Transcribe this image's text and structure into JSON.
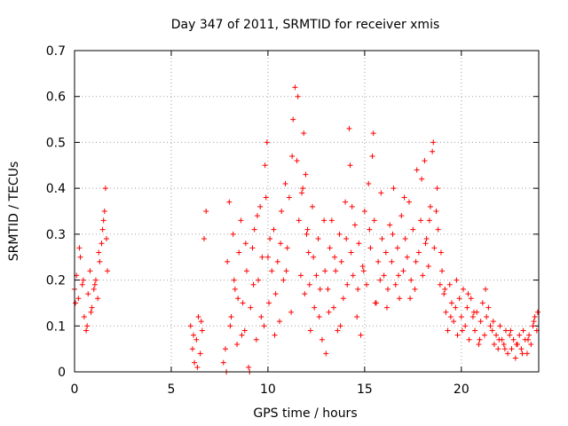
{
  "chart_data": {
    "type": "scatter",
    "title": "Day 347 of 2011, SRMTID for receiver xmis",
    "xlabel": "GPS time / hours",
    "ylabel": "SRMTID / TECUs",
    "xlim": [
      0,
      24
    ],
    "ylim": [
      0,
      0.7
    ],
    "xticks": [
      0,
      5,
      10,
      15,
      20
    ],
    "yticks": [
      0,
      0.1,
      0.2,
      0.3,
      0.4,
      0.5,
      0.6,
      0.7
    ],
    "xtick_labels": [
      "0",
      "5",
      "10",
      "15",
      "20"
    ],
    "ytick_labels": [
      "0",
      "0.1",
      "0.2",
      "0.3",
      "0.4",
      "0.5",
      "0.6",
      "0.7"
    ],
    "grid": true,
    "marker": "+",
    "color": "#ff0000",
    "series": [
      {
        "name": "SRMTID",
        "x": [
          0.0,
          0.1,
          0.2,
          0.3,
          0.4,
          0.5,
          0.6,
          0.7,
          0.8,
          0.9,
          1.0,
          1.1,
          1.2,
          1.3,
          1.4,
          1.5,
          1.6,
          1.7,
          0.05,
          0.25,
          0.45,
          0.65,
          0.85,
          1.05,
          1.25,
          1.45,
          1.55,
          1.65,
          6.0,
          6.1,
          6.2,
          6.3,
          6.4,
          6.5,
          6.6,
          6.7,
          6.8,
          6.15,
          6.35,
          6.55,
          7.7,
          7.8,
          7.9,
          8.0,
          8.1,
          8.2,
          8.3,
          8.4,
          8.5,
          8.6,
          8.7,
          8.8,
          8.9,
          9.0,
          9.1,
          9.2,
          9.3,
          9.4,
          9.5,
          9.6,
          9.7,
          9.8,
          9.9,
          7.85,
          8.05,
          8.25,
          8.45,
          8.65,
          8.85,
          9.05,
          9.25,
          9.45,
          9.65,
          9.85,
          9.95,
          10.0,
          10.1,
          10.2,
          10.3,
          10.4,
          10.5,
          10.6,
          10.7,
          10.8,
          10.9,
          11.0,
          11.1,
          11.2,
          11.3,
          11.4,
          11.5,
          11.6,
          11.7,
          11.8,
          11.9,
          12.0,
          12.1,
          12.2,
          12.3,
          12.4,
          12.5,
          12.6,
          12.7,
          12.8,
          12.9,
          10.05,
          10.35,
          10.65,
          10.95,
          11.25,
          11.55,
          11.75,
          11.85,
          11.95,
          12.05,
          12.15,
          12.35,
          12.65,
          12.95,
          13.0,
          13.1,
          13.2,
          13.3,
          13.4,
          13.5,
          13.6,
          13.7,
          13.8,
          13.9,
          14.0,
          14.1,
          14.2,
          14.3,
          14.4,
          14.5,
          14.6,
          14.7,
          14.8,
          14.9,
          15.0,
          15.1,
          15.2,
          15.3,
          15.4,
          15.5,
          15.6,
          15.7,
          15.8,
          15.9,
          13.15,
          13.45,
          13.75,
          14.05,
          14.25,
          14.35,
          14.65,
          14.95,
          15.25,
          15.45,
          15.55,
          15.85,
          16.0,
          16.1,
          16.2,
          16.3,
          16.4,
          16.5,
          16.6,
          16.7,
          16.8,
          16.9,
          17.0,
          17.1,
          17.2,
          17.3,
          17.4,
          17.5,
          17.6,
          17.7,
          17.8,
          17.9,
          18.0,
          18.1,
          18.2,
          18.3,
          18.4,
          18.5,
          18.6,
          18.7,
          18.8,
          18.9,
          16.15,
          16.45,
          16.75,
          17.05,
          17.35,
          17.65,
          17.95,
          18.15,
          18.35,
          18.55,
          18.75,
          18.95,
          19.0,
          19.1,
          19.2,
          19.3,
          19.4,
          19.5,
          19.6,
          19.7,
          19.8,
          19.9,
          20.0,
          20.1,
          20.2,
          20.3,
          20.4,
          20.5,
          20.6,
          20.7,
          20.8,
          20.9,
          21.0,
          21.1,
          21.2,
          21.3,
          21.4,
          21.5,
          19.15,
          19.45,
          19.75,
          20.05,
          20.35,
          20.65,
          20.95,
          21.25,
          21.6,
          21.7,
          21.8,
          21.9,
          22.0,
          22.1,
          22.2,
          22.3,
          22.4,
          22.5,
          22.6,
          22.7,
          22.8,
          22.9,
          23.0,
          23.1,
          23.2,
          23.3,
          23.4,
          23.5,
          23.6,
          23.7,
          23.8,
          23.9,
          21.65,
          21.95,
          22.25,
          22.55,
          22.85,
          23.15,
          23.45,
          23.75,
          23.95
        ],
        "y": [
          0.18,
          0.21,
          0.16,
          0.25,
          0.19,
          0.12,
          0.09,
          0.17,
          0.22,
          0.14,
          0.18,
          0.2,
          0.16,
          0.24,
          0.28,
          0.33,
          0.4,
          0.22,
          0.15,
          0.27,
          0.2,
          0.1,
          0.13,
          0.19,
          0.26,
          0.31,
          0.35,
          0.29,
          0.1,
          0.05,
          0.02,
          0.07,
          0.12,
          0.04,
          0.09,
          0.29,
          0.35,
          0.08,
          0.01,
          0.11,
          0.02,
          0.05,
          0.24,
          0.37,
          0.12,
          0.3,
          0.18,
          0.06,
          0.26,
          0.33,
          0.15,
          0.09,
          0.22,
          0.01,
          0.14,
          0.27,
          0.31,
          0.07,
          0.2,
          0.36,
          0.25,
          0.1,
          0.38,
          0.0,
          0.1,
          0.2,
          0.16,
          0.08,
          0.28,
          0.0,
          0.19,
          0.34,
          0.12,
          0.45,
          0.5,
          0.25,
          0.29,
          0.22,
          0.31,
          0.17,
          0.24,
          0.11,
          0.35,
          0.2,
          0.41,
          0.27,
          0.38,
          0.13,
          0.55,
          0.62,
          0.46,
          0.33,
          0.21,
          0.4,
          0.17,
          0.3,
          0.26,
          0.09,
          0.36,
          0.14,
          0.21,
          0.29,
          0.18,
          0.07,
          0.33,
          0.15,
          0.08,
          0.28,
          0.22,
          0.47,
          0.6,
          0.39,
          0.52,
          0.43,
          0.31,
          0.19,
          0.25,
          0.12,
          0.22,
          0.04,
          0.18,
          0.27,
          0.33,
          0.14,
          0.22,
          0.09,
          0.3,
          0.24,
          0.16,
          0.37,
          0.19,
          0.53,
          0.26,
          0.21,
          0.32,
          0.12,
          0.28,
          0.08,
          0.23,
          0.35,
          0.19,
          0.41,
          0.27,
          0.47,
          0.33,
          0.15,
          0.24,
          0.2,
          0.29,
          0.13,
          0.25,
          0.1,
          0.29,
          0.45,
          0.36,
          0.18,
          0.22,
          0.31,
          0.52,
          0.15,
          0.39,
          0.21,
          0.26,
          0.18,
          0.32,
          0.24,
          0.4,
          0.19,
          0.27,
          0.16,
          0.34,
          0.22,
          0.29,
          0.25,
          0.37,
          0.2,
          0.31,
          0.18,
          0.44,
          0.26,
          0.33,
          0.21,
          0.46,
          0.29,
          0.23,
          0.36,
          0.48,
          0.27,
          0.35,
          0.31,
          0.19,
          0.14,
          0.3,
          0.21,
          0.38,
          0.16,
          0.24,
          0.42,
          0.28,
          0.33,
          0.5,
          0.4,
          0.26,
          0.22,
          0.17,
          0.13,
          0.09,
          0.19,
          0.15,
          0.11,
          0.14,
          0.08,
          0.16,
          0.12,
          0.18,
          0.1,
          0.14,
          0.07,
          0.16,
          0.12,
          0.09,
          0.13,
          0.06,
          0.11,
          0.15,
          0.08,
          0.12,
          0.14,
          0.1,
          0.18,
          0.12,
          0.2,
          0.09,
          0.17,
          0.13,
          0.07,
          0.18,
          0.09,
          0.06,
          0.08,
          0.05,
          0.1,
          0.07,
          0.06,
          0.09,
          0.04,
          0.08,
          0.05,
          0.07,
          0.03,
          0.06,
          0.08,
          0.05,
          0.09,
          0.07,
          0.04,
          0.08,
          0.06,
          0.1,
          0.12,
          0.09,
          0.11,
          0.07,
          0.05,
          0.09,
          0.06,
          0.04,
          0.07,
          0.11,
          0.13
        ]
      }
    ]
  }
}
